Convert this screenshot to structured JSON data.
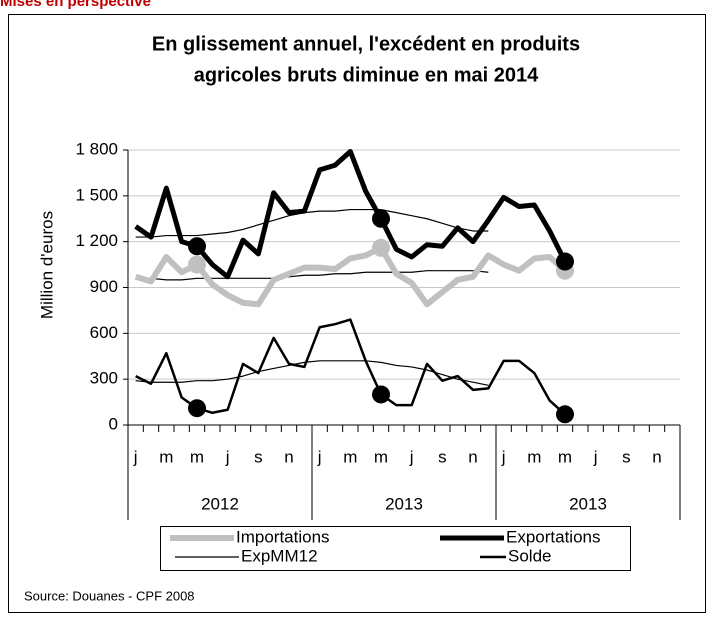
{
  "header": "Mises en perspective",
  "source": "Source: Douanes - CPF 2008",
  "chart_data": {
    "type": "line",
    "title": [
      "En glissement annuel, l'excédent en produits",
      "agricoles bruts diminue en mai 2014"
    ],
    "y_label": "Million d'euros",
    "categories": [
      "j",
      null,
      "m",
      null,
      "m",
      null,
      "j",
      null,
      "s",
      null,
      "n",
      null,
      "j",
      null,
      "m",
      null,
      "m",
      null,
      "j",
      null,
      "s",
      null,
      "n",
      null,
      "j",
      null,
      "m",
      null,
      "m",
      null,
      "j",
      null,
      "s",
      null,
      "n",
      null
    ],
    "group_labels": [
      "2012",
      "2013",
      "2013"
    ],
    "ylim": [
      0,
      1800
    ],
    "yticks": [
      0,
      300,
      600,
      900,
      {
        "value": 1200,
        "label": "1 200"
      },
      {
        "value": 1500,
        "label": "1 500"
      },
      {
        "value": 1800,
        "label": "1 800"
      }
    ],
    "grid": true,
    "series": [
      {
        "name": "Importations",
        "color": "#c0c0c0",
        "width": 6,
        "markers": [
          4,
          16,
          28
        ],
        "values": [
          970,
          940,
          1100,
          1000,
          1050,
          920,
          850,
          800,
          790,
          950,
          990,
          1030,
          1030,
          1020,
          1090,
          1110,
          1160,
          990,
          930,
          790,
          870,
          950,
          970,
          1110,
          1050,
          1010,
          1090,
          1100,
          1010,
          null,
          null,
          null,
          null,
          null,
          null,
          null
        ]
      },
      {
        "name": "Exportations",
        "color": "#000000",
        "width": 5,
        "markers": [
          4,
          16,
          28
        ],
        "values": [
          1300,
          1230,
          1550,
          1200,
          1170,
          1050,
          970,
          1210,
          1120,
          1520,
          1390,
          1400,
          1670,
          1700,
          1790,
          1530,
          1350,
          1150,
          1100,
          1180,
          1170,
          1290,
          1200,
          1340,
          1490,
          1430,
          1440,
          1270,
          1070,
          null,
          null,
          null,
          null,
          null,
          null,
          null
        ]
      },
      {
        "name": "ExpMM12",
        "color": "#000000",
        "width": 1.2,
        "values": [
          1230,
          1230,
          1240,
          1240,
          1240,
          1250,
          1260,
          1280,
          1310,
          1340,
          1370,
          1390,
          1400,
          1400,
          1410,
          1410,
          1410,
          1390,
          1370,
          1350,
          1320,
          1290,
          1270,
          1270,
          null,
          null,
          null,
          null,
          null,
          null,
          null,
          null,
          null,
          null,
          null,
          null
        ]
      },
      {
        "name": "Solde",
        "color": "#000000",
        "width": 2.5,
        "markers": [
          4,
          16,
          28
        ],
        "values": [
          320,
          270,
          470,
          180,
          110,
          80,
          100,
          400,
          340,
          570,
          400,
          380,
          640,
          660,
          690,
          420,
          200,
          130,
          130,
          400,
          290,
          320,
          230,
          240,
          420,
          420,
          340,
          160,
          70,
          null,
          null,
          null,
          null,
          null,
          null,
          null
        ]
      },
      {
        "color": "#000000",
        "width": 1.2,
        "values": [
          960,
          960,
          950,
          950,
          960,
          960,
          960,
          960,
          960,
          960,
          970,
          980,
          980,
          990,
          990,
          1000,
          1000,
          1000,
          1000,
          1010,
          1010,
          1010,
          1010,
          1000,
          null,
          null,
          null,
          null,
          null,
          null,
          null,
          null,
          null,
          null,
          null,
          null
        ]
      },
      {
        "color": "#000000",
        "width": 1.2,
        "values": [
          290,
          280,
          280,
          280,
          290,
          290,
          300,
          320,
          350,
          370,
          390,
          410,
          420,
          420,
          420,
          420,
          410,
          390,
          380,
          360,
          330,
          300,
          280,
          260,
          null,
          null,
          null,
          null,
          null,
          null,
          null,
          null,
          null,
          null,
          null,
          null
        ]
      }
    ]
  }
}
